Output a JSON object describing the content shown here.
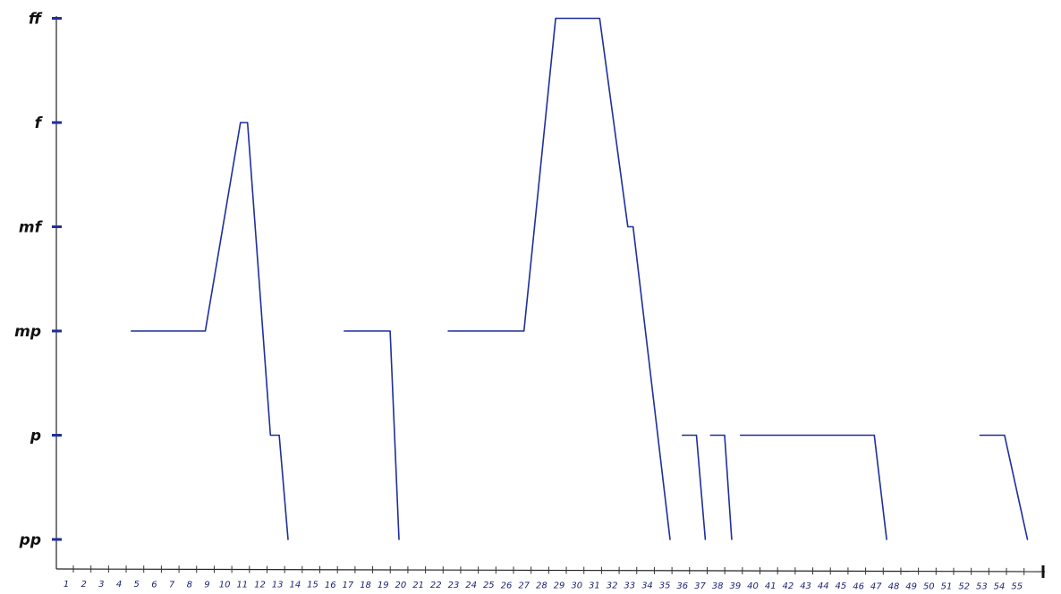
{
  "chart_data": {
    "type": "line",
    "title": "",
    "xlabel": "",
    "ylabel": "",
    "y_levels": [
      "pp",
      "p",
      "mp",
      "mf",
      "f",
      "ff"
    ],
    "x_tick_labels": [
      "1",
      "2",
      "3",
      "4",
      "5",
      "6",
      "7",
      "8",
      "9",
      "10",
      "11",
      "12",
      "13",
      "14",
      "15",
      "16",
      "17",
      "18",
      "19",
      "20",
      "21",
      "22",
      "23",
      "24",
      "25",
      "26",
      "27",
      "28",
      "29",
      "30",
      "31",
      "32",
      "33",
      "34",
      "35",
      "36",
      "37",
      "38",
      "39",
      "40",
      "41",
      "42",
      "43",
      "44",
      "45",
      "46",
      "47",
      "48",
      "49",
      "50",
      "51",
      "52",
      "53",
      "54",
      "55"
    ],
    "xlim": [
      0,
      56
    ],
    "grid": false,
    "legend": "none",
    "line_color": "#1f2f9c",
    "series": [
      {
        "x": [
          4.7,
          8.9,
          10.9,
          11.3,
          12.6,
          13.1,
          13.6
        ],
        "y": [
          2,
          2,
          4,
          4,
          1,
          1,
          0
        ]
      },
      {
        "x": [
          16.8,
          19.4,
          19.9
        ],
        "y": [
          2,
          2,
          0
        ]
      },
      {
        "x": [
          22.7,
          27.0,
          28.8,
          31.3,
          32.9,
          33.2,
          35.3
        ],
        "y": [
          2,
          2,
          5,
          5,
          3,
          3,
          0
        ]
      },
      {
        "x": [
          36.0,
          36.8,
          37.3
        ],
        "y": [
          1,
          1,
          0
        ]
      },
      {
        "x": [
          37.6,
          38.4,
          38.8
        ],
        "y": [
          1,
          1,
          0
        ]
      },
      {
        "x": [
          39.3,
          46.9,
          47.6
        ],
        "y": [
          1,
          1,
          0
        ]
      },
      {
        "x": [
          52.9,
          54.3,
          55.6
        ],
        "y": [
          1,
          1,
          0
        ]
      }
    ]
  }
}
